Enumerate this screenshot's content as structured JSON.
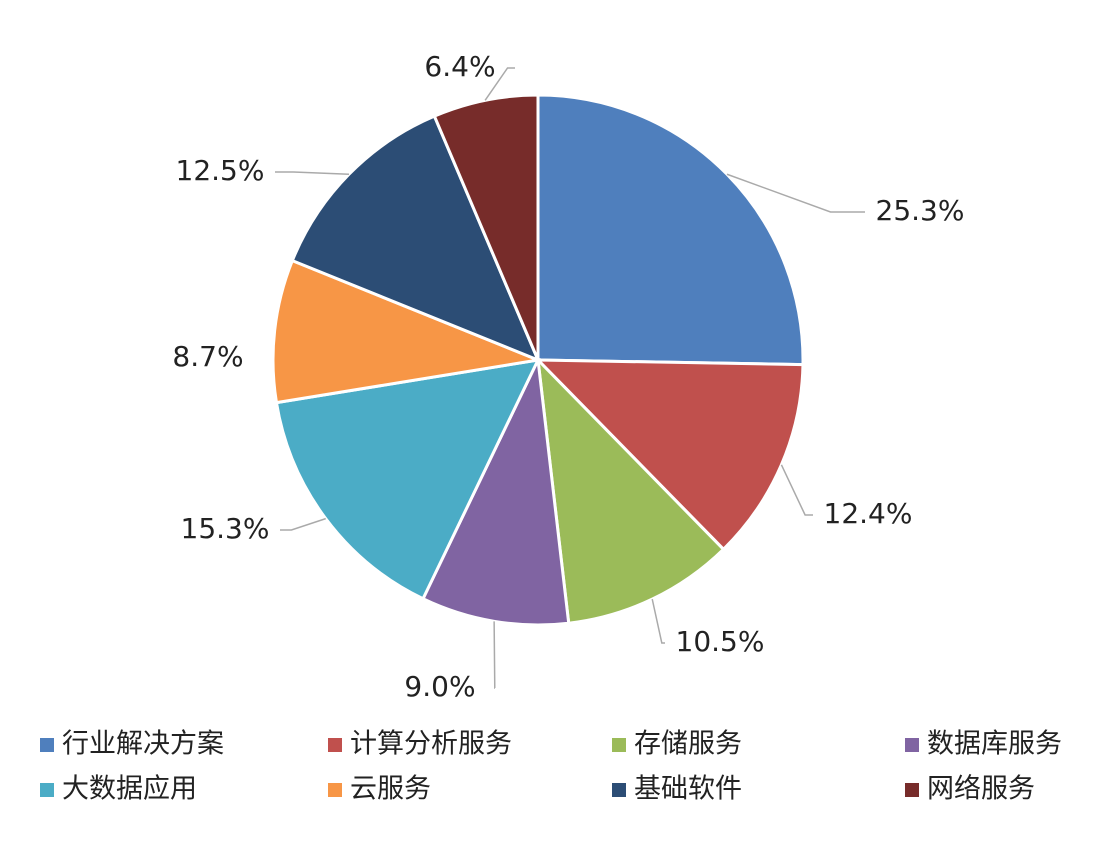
{
  "chart_data": {
    "type": "pie",
    "categories": [
      "行业解决方案",
      "计算分析服务",
      "存储服务",
      "数据库服务",
      "大数据应用",
      "云服务",
      "基础软件",
      "网络服务"
    ],
    "values": [
      25.3,
      12.4,
      10.5,
      9.0,
      15.3,
      8.7,
      12.5,
      6.4
    ],
    "value_labels": [
      "25.3%",
      "12.4%",
      "10.5%",
      "9.0%",
      "15.3%",
      "8.7%",
      "12.5%",
      "6.4%"
    ],
    "colors": [
      "#4f7fbd",
      "#c0504d",
      "#9bbb59",
      "#8064a2",
      "#4bacc6",
      "#f79646",
      "#2c4d75",
      "#772c2a"
    ],
    "legend": "bottom"
  }
}
